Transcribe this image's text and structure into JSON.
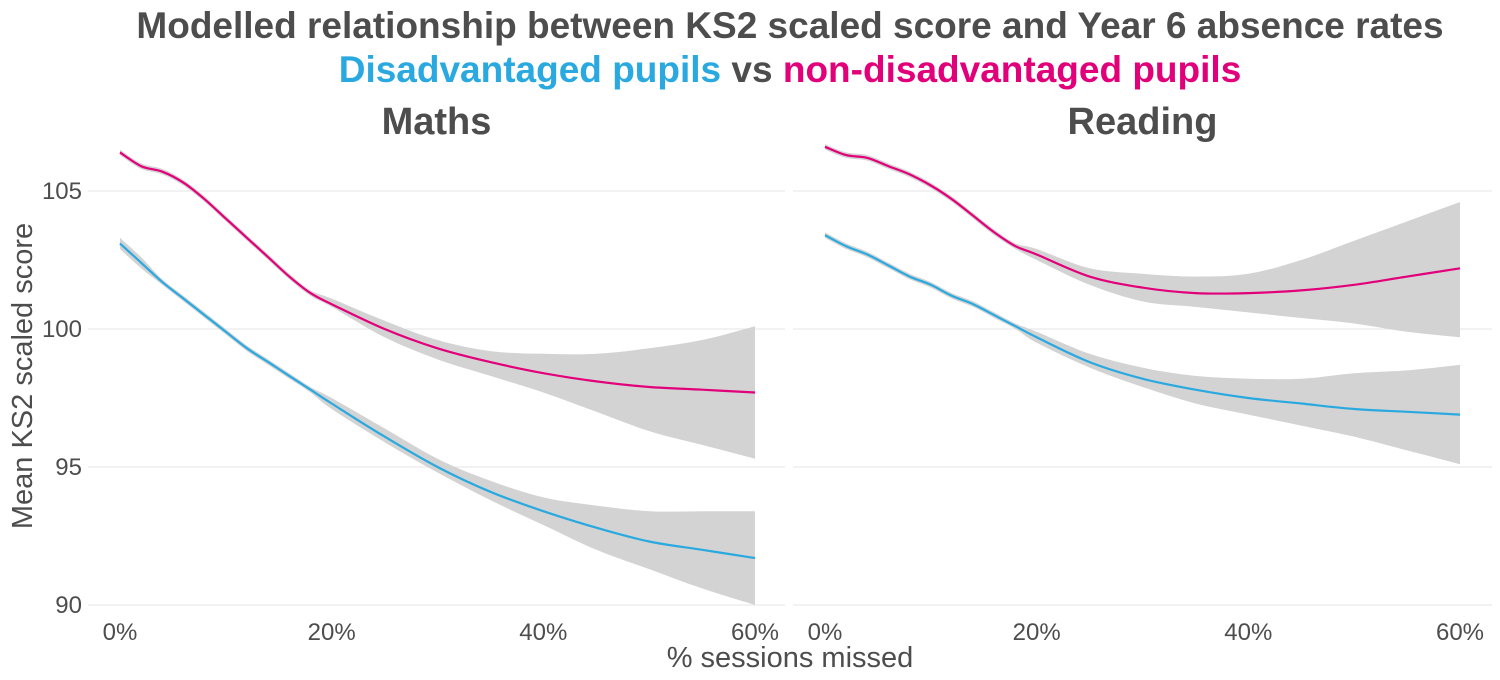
{
  "chart_data": {
    "type": "line",
    "title": "Modelled relationship between KS2 scaled score and Year 6 absence rates",
    "subtitle": {
      "part1": "Disadvantaged pupils",
      "part2": " vs ",
      "part3": "non-disadvantaged pupils"
    },
    "xlabel": "% sessions missed",
    "ylabel": "Mean KS2 scaled score",
    "x_ticks": [
      "0%",
      "20%",
      "40%",
      "60%"
    ],
    "y_ticks": [
      "90",
      "95",
      "100",
      "105"
    ],
    "xlim": [
      0,
      60
    ],
    "ylim": [
      90,
      107
    ],
    "grid": "horizontal",
    "colors": {
      "disadvantaged": "#29a9e0",
      "non_disadvantaged": "#e2007a",
      "ribbon": "#d3d3d3",
      "text": "#4d4d4d",
      "grid": "#e6e6e6"
    },
    "panels": [
      {
        "name": "Maths",
        "x": [
          0,
          2,
          4,
          6,
          8,
          10,
          12,
          14,
          16,
          18,
          20,
          25,
          30,
          35,
          40,
          45,
          50,
          55,
          60
        ],
        "series": [
          {
            "name": "non-disadvantaged pupils",
            "color": "#e2007a",
            "values": [
              106.4,
              105.9,
              105.7,
              105.3,
              104.7,
              104.0,
              103.3,
              102.6,
              101.9,
              101.3,
              100.9,
              100.0,
              99.3,
              98.8,
              98.4,
              98.1,
              97.9,
              97.8,
              97.7
            ],
            "lower": [
              106.3,
              105.8,
              105.6,
              105.2,
              104.6,
              103.9,
              103.2,
              102.5,
              101.8,
              101.2,
              100.8,
              99.7,
              98.9,
              98.3,
              97.7,
              97.0,
              96.3,
              95.8,
              95.3
            ],
            "upper": [
              106.5,
              106.0,
              105.8,
              105.4,
              104.8,
              104.1,
              103.4,
              102.7,
              102.0,
              101.4,
              101.1,
              100.3,
              99.6,
              99.2,
              99.1,
              99.1,
              99.3,
              99.6,
              100.1
            ]
          },
          {
            "name": "Disadvantaged pupils",
            "color": "#29a9e0",
            "values": [
              103.1,
              102.4,
              101.7,
              101.1,
              100.5,
              99.9,
              99.3,
              98.8,
              98.3,
              97.8,
              97.3,
              96.1,
              95.0,
              94.1,
              93.4,
              92.8,
              92.3,
              92.0,
              91.7
            ],
            "lower": [
              102.9,
              102.2,
              101.6,
              101.0,
              100.4,
              99.8,
              99.2,
              98.7,
              98.2,
              97.7,
              97.1,
              95.9,
              94.8,
              93.8,
              92.9,
              92.0,
              91.3,
              90.6,
              90.0
            ],
            "upper": [
              103.3,
              102.6,
              101.8,
              101.2,
              100.6,
              100.0,
              99.4,
              98.9,
              98.4,
              97.9,
              97.5,
              96.4,
              95.3,
              94.5,
              93.9,
              93.6,
              93.4,
              93.4,
              93.4
            ]
          }
        ]
      },
      {
        "name": "Reading",
        "x": [
          0,
          2,
          4,
          6,
          8,
          10,
          12,
          14,
          16,
          18,
          20,
          25,
          30,
          35,
          40,
          45,
          50,
          55,
          60
        ],
        "series": [
          {
            "name": "non-disadvantaged pupils",
            "color": "#e2007a",
            "values": [
              106.6,
              106.3,
              106.2,
              105.9,
              105.6,
              105.2,
              104.7,
              104.1,
              103.5,
              103.0,
              102.7,
              101.9,
              101.5,
              101.3,
              101.3,
              101.4,
              101.6,
              101.9,
              102.2
            ],
            "lower": [
              106.5,
              106.2,
              106.1,
              105.8,
              105.5,
              105.1,
              104.6,
              104.0,
              103.4,
              102.9,
              102.5,
              101.6,
              101.0,
              100.8,
              100.6,
              100.4,
              100.2,
              99.9,
              99.7
            ],
            "upper": [
              106.7,
              106.4,
              106.3,
              106.0,
              105.7,
              105.3,
              104.8,
              104.2,
              103.6,
              103.1,
              102.9,
              102.2,
              102.0,
              101.9,
              102.0,
              102.5,
              103.2,
              103.9,
              104.6
            ]
          },
          {
            "name": "Disadvantaged pupils",
            "color": "#29a9e0",
            "values": [
              103.4,
              103.0,
              102.7,
              102.3,
              101.9,
              101.6,
              101.2,
              100.9,
              100.5,
              100.1,
              99.7,
              98.8,
              98.2,
              97.8,
              97.5,
              97.3,
              97.1,
              97.0,
              96.9
            ],
            "lower": [
              103.3,
              102.9,
              102.6,
              102.2,
              101.8,
              101.5,
              101.1,
              100.8,
              100.4,
              100.0,
              99.5,
              98.6,
              97.9,
              97.3,
              96.9,
              96.5,
              96.1,
              95.6,
              95.1
            ],
            "upper": [
              103.5,
              103.1,
              102.8,
              102.4,
              102.0,
              101.7,
              101.3,
              101.0,
              100.6,
              100.2,
              99.9,
              99.1,
              98.6,
              98.3,
              98.2,
              98.2,
              98.4,
              98.5,
              98.7
            ]
          }
        ]
      }
    ]
  }
}
